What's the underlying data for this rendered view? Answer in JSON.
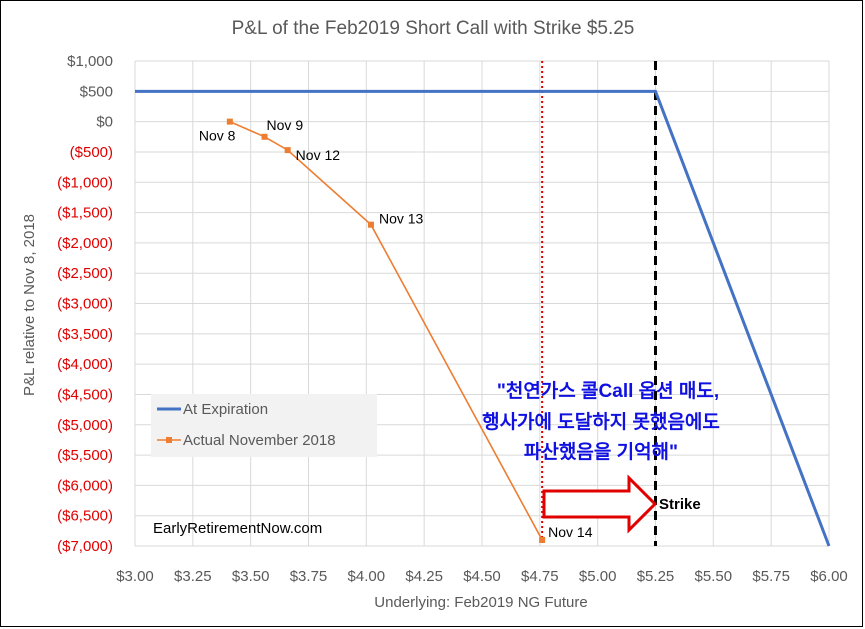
{
  "chart_data": {
    "type": "line",
    "title": "P&L of the Feb2019 Short Call with Strike $5.25",
    "xlabel": "Underlying: Feb2019 NG Future",
    "ylabel": "P&L relative to Nov 8, 2018",
    "xlim": [
      3.0,
      6.0
    ],
    "ylim": [
      -7000,
      1000
    ],
    "x_ticks": [
      "$3.00",
      "$3.25",
      "$3.50",
      "$3.75",
      "$4.00",
      "$4.25",
      "$4.50",
      "$4.75",
      "$5.00",
      "$5.25",
      "$5.50",
      "$5.75",
      "$6.00"
    ],
    "y_ticks": [
      {
        "value": 1000,
        "label": "$1,000"
      },
      {
        "value": 500,
        "label": "$500"
      },
      {
        "value": 0,
        "label": "$0"
      },
      {
        "value": -500,
        "label": "($500)"
      },
      {
        "value": -1000,
        "label": "($1,000)"
      },
      {
        "value": -1500,
        "label": "($1,500)"
      },
      {
        "value": -2000,
        "label": "($2,000)"
      },
      {
        "value": -2500,
        "label": "($2,500)"
      },
      {
        "value": -3000,
        "label": "($3,000)"
      },
      {
        "value": -3500,
        "label": "($3,500)"
      },
      {
        "value": -4000,
        "label": "($4,000)"
      },
      {
        "value": -4500,
        "label": "($4,500)"
      },
      {
        "value": -5000,
        "label": "($5,000)"
      },
      {
        "value": -5500,
        "label": "($5,500)"
      },
      {
        "value": -6000,
        "label": "($6,000)"
      },
      {
        "value": -6500,
        "label": "($6,500)"
      },
      {
        "value": -7000,
        "label": "($7,000)"
      }
    ],
    "grid": true,
    "legend_position": "bottom-left",
    "series": [
      {
        "name": "At Expiration",
        "color": "#4472c4",
        "points": [
          [
            3.0,
            500
          ],
          [
            5.25,
            500
          ],
          [
            6.0,
            -7000
          ]
        ]
      },
      {
        "name": "Actual November 2018",
        "color": "#ed7d31",
        "points": [
          [
            3.41,
            0
          ],
          [
            3.56,
            -250
          ],
          [
            3.66,
            -470
          ],
          [
            4.02,
            -1700
          ],
          [
            4.76,
            -6900
          ]
        ],
        "labels": [
          "Nov 8",
          "Nov 9",
          "Nov 12",
          "Nov 13",
          "Nov 14"
        ]
      }
    ],
    "reference_lines": [
      {
        "x": 4.76,
        "style": "dotted",
        "color": "#e00000"
      },
      {
        "x": 5.25,
        "style": "dashed",
        "color": "#000000",
        "label": "Strike"
      }
    ],
    "credit": "EarlyRetirementNow.com",
    "note_lines": [
      "\"천연가스 콜Call 옵션 매도,",
      "행사가에 도달하지 못했음에도",
      "파산했음을 기억해\""
    ],
    "colors": {
      "negative_tick": "#e00000",
      "positive_tick": "#595959",
      "grid": "#d9d9d9",
      "note": "#1010e0",
      "arrow": "#e00000"
    }
  }
}
